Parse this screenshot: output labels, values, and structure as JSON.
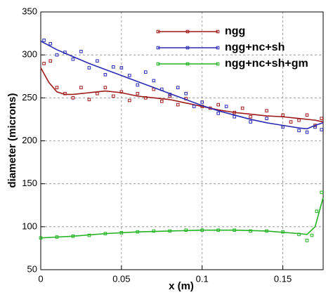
{
  "chart_data": {
    "type": "line",
    "xlabel": "x (m)",
    "ylabel": "diameter (microns)",
    "xlim": [
      0,
      0.175
    ],
    "ylim": [
      50,
      350
    ],
    "xticks": [
      0,
      0.05,
      0.1,
      0.15
    ],
    "yticks": [
      50,
      100,
      150,
      200,
      250,
      300,
      350
    ],
    "grid": true,
    "legend": "upper right",
    "series": [
      {
        "name": "ngg",
        "color": "#a01818",
        "x": [
          0,
          0.005,
          0.01,
          0.015,
          0.02,
          0.03,
          0.04,
          0.05,
          0.06,
          0.07,
          0.08,
          0.09,
          0.1,
          0.11,
          0.12,
          0.13,
          0.14,
          0.15,
          0.16,
          0.17,
          0.175
        ],
        "values": [
          285,
          268,
          257,
          254,
          254,
          256,
          258,
          256,
          252,
          250,
          248,
          244,
          240,
          236,
          233,
          231,
          229,
          228,
          226,
          224,
          222
        ],
        "sample_x": [
          0.002,
          0.006,
          0.01,
          0.015,
          0.02,
          0.025,
          0.03,
          0.035,
          0.04,
          0.045,
          0.05,
          0.055,
          0.06,
          0.065,
          0.07,
          0.075,
          0.08,
          0.085,
          0.09,
          0.1,
          0.105,
          0.11,
          0.12,
          0.125,
          0.13,
          0.14,
          0.15,
          0.155,
          0.16,
          0.165,
          0.17,
          0.174
        ],
        "sample_values": [
          290,
          293,
          262,
          255,
          250,
          262,
          248,
          255,
          262,
          252,
          257,
          247,
          255,
          250,
          260,
          246,
          252,
          242,
          249,
          240,
          238,
          242,
          233,
          238,
          228,
          235,
          230,
          222,
          224,
          230,
          218,
          226
        ]
      },
      {
        "name": "ngg+nc+sh",
        "color": "#2a2ab4",
        "x": [
          0,
          0.01,
          0.02,
          0.03,
          0.04,
          0.05,
          0.06,
          0.07,
          0.08,
          0.09,
          0.1,
          0.11,
          0.12,
          0.13,
          0.14,
          0.15,
          0.16,
          0.165,
          0.17,
          0.175
        ],
        "values": [
          316,
          306,
          298,
          290,
          283,
          276,
          269,
          262,
          255,
          248,
          241,
          235,
          230,
          225,
          221,
          218,
          215,
          214,
          218,
          221
        ],
        "sample_x": [
          0.002,
          0.006,
          0.01,
          0.015,
          0.02,
          0.025,
          0.03,
          0.035,
          0.04,
          0.045,
          0.05,
          0.055,
          0.06,
          0.065,
          0.07,
          0.075,
          0.08,
          0.085,
          0.09,
          0.095,
          0.1,
          0.11,
          0.115,
          0.12,
          0.13,
          0.14,
          0.15,
          0.16,
          0.165,
          0.17,
          0.174
        ],
        "sample_values": [
          317,
          313,
          300,
          303,
          295,
          304,
          285,
          293,
          277,
          286,
          285,
          276,
          265,
          280,
          270,
          260,
          254,
          262,
          255,
          240,
          245,
          232,
          240,
          228,
          222,
          226,
          216,
          212,
          210,
          216,
          213
        ]
      },
      {
        "name": "ngg+nc+sh+gm",
        "color": "#22b422",
        "x": [
          0,
          0.02,
          0.04,
          0.06,
          0.08,
          0.1,
          0.12,
          0.14,
          0.16,
          0.165,
          0.17,
          0.175
        ],
        "values": [
          87,
          89,
          92,
          94,
          95,
          96,
          96,
          95,
          92,
          91,
          100,
          134
        ],
        "sample_x": [
          0,
          0.01,
          0.02,
          0.03,
          0.04,
          0.05,
          0.06,
          0.07,
          0.08,
          0.09,
          0.1,
          0.11,
          0.12,
          0.13,
          0.14,
          0.15,
          0.16,
          0.165,
          0.168,
          0.171,
          0.174
        ],
        "sample_values": [
          87,
          88,
          89,
          90,
          92,
          93,
          94,
          95,
          95,
          96,
          96,
          96,
          96,
          95,
          95,
          94,
          91,
          84,
          90,
          118,
          140
        ]
      }
    ]
  }
}
